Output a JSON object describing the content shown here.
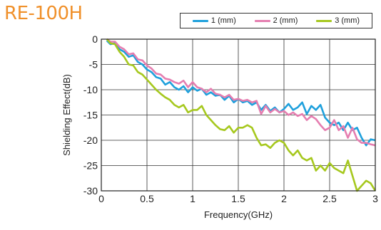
{
  "title": "RE-100H",
  "chart_data": {
    "type": "line",
    "xlabel": "Frequency(GHz)",
    "ylabel": "Shielding Effect(dB)",
    "xlim": [
      0,
      3
    ],
    "ylim": [
      -30,
      0
    ],
    "xticks": [
      0,
      0.5,
      1,
      1.5,
      2,
      2.5,
      3
    ],
    "xtick_labels": [
      "0",
      "0.5",
      "1",
      "1.5",
      "2",
      "2.5",
      "3"
    ],
    "yticks": [
      0,
      -5,
      -10,
      -15,
      -20,
      -25,
      -30
    ],
    "ytick_labels": [
      "0",
      "-5",
      "-10",
      "-15",
      "-20",
      "-25",
      "-30"
    ],
    "grid": true,
    "legend_position": "top-right",
    "series": [
      {
        "name": "1 (mm)",
        "color": "#1ea0dc",
        "x": [
          0.06,
          0.1,
          0.15,
          0.2,
          0.25,
          0.3,
          0.35,
          0.4,
          0.45,
          0.5,
          0.55,
          0.6,
          0.65,
          0.7,
          0.75,
          0.8,
          0.85,
          0.9,
          0.95,
          1.0,
          1.05,
          1.1,
          1.15,
          1.2,
          1.25,
          1.3,
          1.35,
          1.4,
          1.45,
          1.5,
          1.55,
          1.6,
          1.65,
          1.7,
          1.75,
          1.8,
          1.85,
          1.9,
          1.95,
          2.0,
          2.05,
          2.1,
          2.15,
          2.2,
          2.25,
          2.3,
          2.35,
          2.4,
          2.45,
          2.5,
          2.55,
          2.6,
          2.65,
          2.7,
          2.75,
          2.8,
          2.85,
          2.9,
          2.95,
          3.0
        ],
        "y": [
          -0.3,
          -1,
          -0.8,
          -2,
          -2.5,
          -3.5,
          -3.2,
          -4.5,
          -5,
          -6,
          -6.5,
          -7.5,
          -7.8,
          -9,
          -8.5,
          -9.5,
          -10,
          -9.3,
          -10.5,
          -9.5,
          -10.2,
          -9.8,
          -11,
          -10.5,
          -11.2,
          -11,
          -12,
          -11.2,
          -12.5,
          -11.8,
          -12.5,
          -12.2,
          -13,
          -12.5,
          -14,
          -13,
          -14.2,
          -13.5,
          -14.5,
          -13.8,
          -12.8,
          -14,
          -13.5,
          -12.5,
          -14.8,
          -13.2,
          -14,
          -13,
          -15.5,
          -16.5,
          -17,
          -16.5,
          -18,
          -16.5,
          -18,
          -17.5,
          -19.5,
          -21,
          -19.8,
          -20
        ]
      },
      {
        "name": "2 (mm)",
        "color": "#e57eb0",
        "x": [
          0.06,
          0.1,
          0.15,
          0.2,
          0.25,
          0.3,
          0.35,
          0.4,
          0.45,
          0.5,
          0.55,
          0.6,
          0.65,
          0.7,
          0.75,
          0.8,
          0.85,
          0.9,
          0.95,
          1.0,
          1.05,
          1.1,
          1.15,
          1.2,
          1.25,
          1.3,
          1.35,
          1.4,
          1.45,
          1.5,
          1.55,
          1.6,
          1.65,
          1.7,
          1.75,
          1.8,
          1.85,
          1.9,
          1.95,
          2.0,
          2.05,
          2.1,
          2.15,
          2.2,
          2.25,
          2.3,
          2.35,
          2.4,
          2.45,
          2.5,
          2.55,
          2.6,
          2.65,
          2.7,
          2.75,
          2.8,
          2.85,
          2.9,
          2.95,
          3.0
        ],
        "y": [
          0,
          -0.5,
          -0.5,
          -1.5,
          -2,
          -3,
          -2.8,
          -4,
          -4.2,
          -5.2,
          -5.8,
          -6.8,
          -7,
          -7.8,
          -8,
          -8.5,
          -8.8,
          -8.2,
          -9.5,
          -8.5,
          -9.5,
          -9.8,
          -10.5,
          -9.8,
          -10.8,
          -11,
          -11.5,
          -11,
          -12,
          -11.8,
          -12.2,
          -12,
          -12.5,
          -12.2,
          -14.8,
          -13.2,
          -14.5,
          -13.8,
          -14.5,
          -14.2,
          -15,
          -14.5,
          -15.2,
          -14.8,
          -16,
          -15.2,
          -15.8,
          -17,
          -18,
          -17.5,
          -16,
          -18,
          -17.2,
          -19.5,
          -17.5,
          -19.8,
          -20.5,
          -20.5,
          -20.8,
          -21
        ]
      },
      {
        "name": "3 (mm)",
        "color": "#a6c81e",
        "x": [
          0.06,
          0.1,
          0.15,
          0.2,
          0.25,
          0.3,
          0.35,
          0.4,
          0.45,
          0.5,
          0.55,
          0.6,
          0.65,
          0.7,
          0.75,
          0.8,
          0.85,
          0.9,
          0.95,
          1.0,
          1.05,
          1.1,
          1.15,
          1.2,
          1.25,
          1.3,
          1.35,
          1.4,
          1.45,
          1.5,
          1.55,
          1.6,
          1.65,
          1.7,
          1.75,
          1.8,
          1.85,
          1.9,
          1.95,
          2.0,
          2.05,
          2.1,
          2.15,
          2.2,
          2.25,
          2.3,
          2.35,
          2.4,
          2.45,
          2.5,
          2.55,
          2.6,
          2.65,
          2.7,
          2.75,
          2.8,
          2.85,
          2.9,
          2.95,
          3.0
        ],
        "y": [
          0,
          -0.8,
          -1,
          -2.5,
          -3.5,
          -5,
          -5.2,
          -6.5,
          -7,
          -8,
          -9,
          -10,
          -10.8,
          -11.5,
          -12,
          -13,
          -13.5,
          -13,
          -14.5,
          -14,
          -14,
          -13.2,
          -15,
          -16,
          -17,
          -17.8,
          -18,
          -17.2,
          -18.5,
          -17.5,
          -17.5,
          -17,
          -17.5,
          -19.5,
          -21,
          -20.8,
          -21.5,
          -20.5,
          -20,
          -20.5,
          -22,
          -23,
          -22,
          -23.5,
          -24,
          -23.5,
          -26,
          -25,
          -26,
          -24.5,
          -25.5,
          -26,
          -26.5,
          -24,
          -27,
          -30,
          -29,
          -28,
          -28.5,
          -30
        ]
      }
    ]
  }
}
